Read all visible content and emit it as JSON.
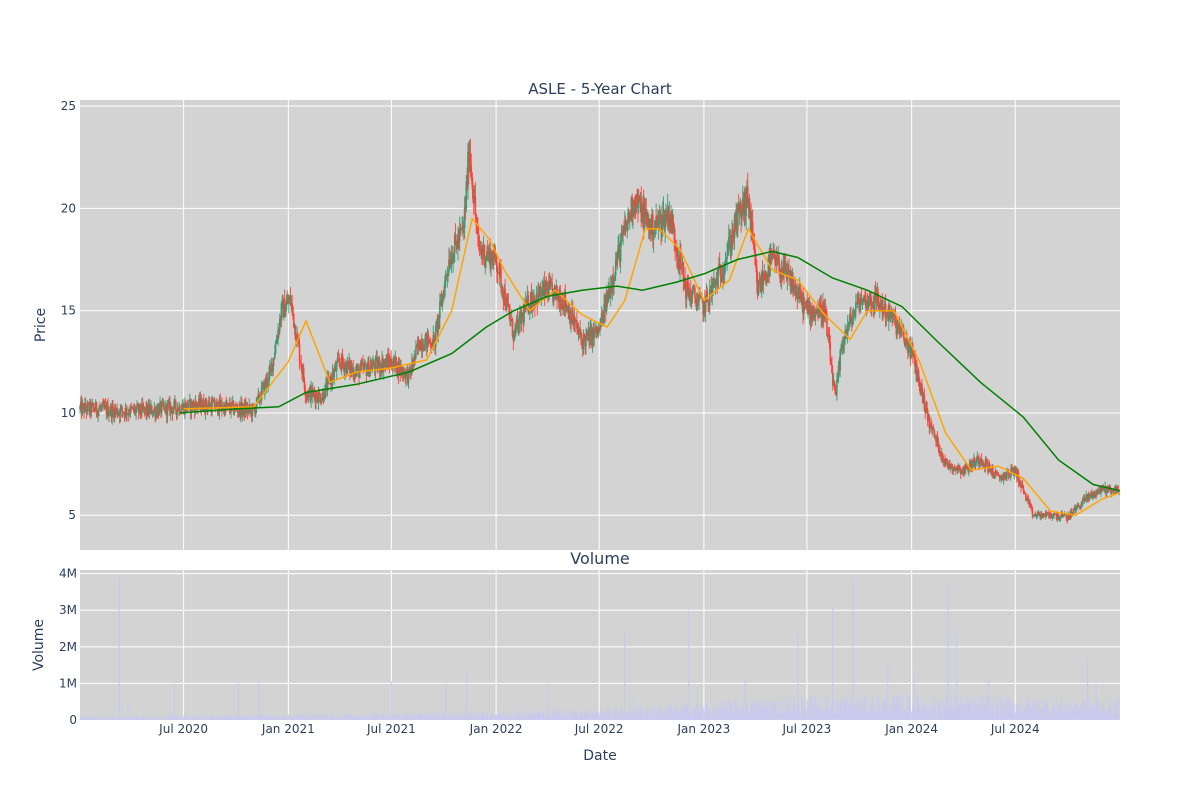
{
  "chart_data": [
    {
      "type": "candlestick",
      "title": "ASLE - 5-Year Chart",
      "xlabel": "",
      "ylabel": "Price",
      "ylim": [
        3.3,
        25.3
      ],
      "yticks": [
        5,
        10,
        15,
        20,
        25
      ],
      "grid": true,
      "legend": "none",
      "colors": {
        "increasing": "#3d9970",
        "decreasing": "#ff4136",
        "ma_short": "#ffa500",
        "ma_long": "#008000",
        "plot_bg": "#d3d3d3",
        "grid": "#ffffff"
      },
      "series": [
        {
          "kind": "ohlc-close-trace",
          "points": [
            [
              "2020-01-01",
              10.2
            ],
            [
              "2020-02-01",
              10.2
            ],
            [
              "2020-03-01",
              10.1
            ],
            [
              "2020-04-01",
              10.1
            ],
            [
              "2020-05-01",
              10.1
            ],
            [
              "2020-06-01",
              10.2
            ],
            [
              "2020-07-01",
              10.3
            ],
            [
              "2020-08-01",
              10.4
            ],
            [
              "2020-09-01",
              10.3
            ],
            [
              "2020-10-01",
              10.2
            ],
            [
              "2020-11-01",
              10.1
            ],
            [
              "2020-12-01",
              12.0
            ],
            [
              "2020-12-20",
              15.0
            ],
            [
              "2021-01-05",
              15.5
            ],
            [
              "2021-02-01",
              11.0
            ],
            [
              "2021-03-01",
              10.8
            ],
            [
              "2021-04-01",
              12.5
            ],
            [
              "2021-05-01",
              12.0
            ],
            [
              "2021-06-01",
              12.3
            ],
            [
              "2021-07-01",
              12.5
            ],
            [
              "2021-08-01",
              11.8
            ],
            [
              "2021-08-20",
              13.5
            ],
            [
              "2021-09-15",
              13.5
            ],
            [
              "2021-10-10",
              17.5
            ],
            [
              "2021-11-05",
              19.0
            ],
            [
              "2021-11-15",
              23.0
            ],
            [
              "2021-12-01",
              18.0
            ],
            [
              "2022-01-01",
              17.5
            ],
            [
              "2022-02-01",
              13.8
            ],
            [
              "2022-03-01",
              15.5
            ],
            [
              "2022-04-01",
              16.0
            ],
            [
              "2022-05-01",
              15.5
            ],
            [
              "2022-06-01",
              13.5
            ],
            [
              "2022-07-01",
              14.0
            ],
            [
              "2022-08-01",
              17.5
            ],
            [
              "2022-09-01",
              20.5
            ],
            [
              "2022-10-01",
              19.0
            ],
            [
              "2022-11-01",
              19.8
            ],
            [
              "2022-12-01",
              16.0
            ],
            [
              "2023-01-01",
              15.2
            ],
            [
              "2023-02-01",
              17.0
            ],
            [
              "2023-03-01",
              19.5
            ],
            [
              "2023-03-20",
              20.5
            ],
            [
              "2023-04-05",
              16.0
            ],
            [
              "2023-05-01",
              17.5
            ],
            [
              "2023-06-01",
              16.5
            ],
            [
              "2023-07-01",
              15.0
            ],
            [
              "2023-08-01",
              15.0
            ],
            [
              "2023-08-20",
              10.6
            ],
            [
              "2023-09-01",
              13.5
            ],
            [
              "2023-10-01",
              15.5
            ],
            [
              "2023-11-01",
              15.5
            ],
            [
              "2023-12-01",
              14.5
            ],
            [
              "2024-01-01",
              13.0
            ],
            [
              "2024-02-01",
              9.5
            ],
            [
              "2024-03-01",
              7.5
            ],
            [
              "2024-04-01",
              7.2
            ],
            [
              "2024-05-01",
              7.8
            ],
            [
              "2024-06-01",
              6.8
            ],
            [
              "2024-07-01",
              7.2
            ],
            [
              "2024-08-01",
              5.0
            ],
            [
              "2024-09-01",
              5.0
            ],
            [
              "2024-10-01",
              4.9
            ],
            [
              "2024-11-01",
              5.8
            ],
            [
              "2024-12-01",
              6.3
            ],
            [
              "2025-01-01",
              6.2
            ]
          ]
        },
        {
          "kind": "moving-average-short",
          "points": [
            [
              "2020-07-01",
              10.2
            ],
            [
              "2020-11-01",
              10.3
            ],
            [
              "2021-01-01",
              12.5
            ],
            [
              "2021-02-01",
              14.5
            ],
            [
              "2021-03-15",
              11.5
            ],
            [
              "2021-05-01",
              12.0
            ],
            [
              "2021-07-01",
              12.2
            ],
            [
              "2021-09-01",
              12.6
            ],
            [
              "2021-10-15",
              15.0
            ],
            [
              "2021-11-20",
              19.5
            ],
            [
              "2021-12-20",
              18.5
            ],
            [
              "2022-01-15",
              17.0
            ],
            [
              "2022-03-01",
              15.0
            ],
            [
              "2022-04-15",
              16.0
            ],
            [
              "2022-06-01",
              14.8
            ],
            [
              "2022-07-15",
              14.2
            ],
            [
              "2022-08-15",
              15.5
            ],
            [
              "2022-09-20",
              19.0
            ],
            [
              "2022-10-15",
              19.0
            ],
            [
              "2022-11-20",
              18.0
            ],
            [
              "2023-01-01",
              15.5
            ],
            [
              "2023-02-15",
              16.5
            ],
            [
              "2023-03-20",
              19.0
            ],
            [
              "2023-05-01",
              17.0
            ],
            [
              "2023-06-15",
              16.5
            ],
            [
              "2023-08-01",
              14.8
            ],
            [
              "2023-09-15",
              13.6
            ],
            [
              "2023-10-15",
              15.0
            ],
            [
              "2023-12-01",
              15.0
            ],
            [
              "2024-01-15",
              12.5
            ],
            [
              "2024-03-01",
              9.0
            ],
            [
              "2024-04-15",
              7.2
            ],
            [
              "2024-06-01",
              7.4
            ],
            [
              "2024-07-15",
              6.8
            ],
            [
              "2024-09-01",
              5.2
            ],
            [
              "2024-10-15",
              5.0
            ],
            [
              "2024-12-01",
              5.8
            ],
            [
              "2025-01-01",
              6.1
            ]
          ]
        },
        {
          "kind": "moving-average-long",
          "points": [
            [
              "2020-06-25",
              10.0
            ],
            [
              "2020-10-01",
              10.2
            ],
            [
              "2020-12-15",
              10.3
            ],
            [
              "2021-02-01",
              11.0
            ],
            [
              "2021-05-01",
              11.4
            ],
            [
              "2021-08-01",
              12.0
            ],
            [
              "2021-10-15",
              12.9
            ],
            [
              "2021-12-15",
              14.2
            ],
            [
              "2022-02-01",
              15.0
            ],
            [
              "2022-04-01",
              15.7
            ],
            [
              "2022-06-01",
              16.0
            ],
            [
              "2022-08-01",
              16.2
            ],
            [
              "2022-09-15",
              16.0
            ],
            [
              "2022-11-15",
              16.4
            ],
            [
              "2023-01-01",
              16.8
            ],
            [
              "2023-03-01",
              17.5
            ],
            [
              "2023-05-01",
              17.9
            ],
            [
              "2023-06-15",
              17.6
            ],
            [
              "2023-08-15",
              16.6
            ],
            [
              "2023-10-15",
              16.0
            ],
            [
              "2023-12-15",
              15.2
            ],
            [
              "2024-02-15",
              13.5
            ],
            [
              "2024-05-01",
              11.5
            ],
            [
              "2024-07-15",
              9.8
            ],
            [
              "2024-09-15",
              7.7
            ],
            [
              "2024-11-15",
              6.5
            ],
            [
              "2025-01-01",
              6.2
            ]
          ]
        }
      ]
    },
    {
      "type": "bar",
      "title": "Volume",
      "xlabel": "Date",
      "ylabel": "Volume",
      "ylim": [
        0,
        4100000
      ],
      "yticks": [
        0,
        1000000,
        2000000,
        3000000,
        4000000
      ],
      "ytick_labels": [
        "0",
        "1M",
        "2M",
        "3M",
        "4M"
      ],
      "xticks": [
        "2020-07-01",
        "2021-01-01",
        "2021-07-01",
        "2022-01-01",
        "2022-07-01",
        "2023-01-01",
        "2023-07-01",
        "2024-01-01",
        "2024-07-01"
      ],
      "xtick_labels": [
        "Jul 2020",
        "Jan 2021",
        "Jul 2021",
        "Jan 2022",
        "Jul 2022",
        "Jan 2023",
        "Jul 2023",
        "Jan 2024",
        "Jul 2024"
      ],
      "xlim": [
        "2020-01-01",
        "2025-01-01"
      ],
      "bar_color": "#c8c8f0",
      "spikes": [
        [
          "2020-03-10",
          3900000
        ],
        [
          "2020-03-25",
          450000
        ],
        [
          "2020-06-15",
          1000000
        ],
        [
          "2020-10-05",
          1050000
        ],
        [
          "2020-11-10",
          1050000
        ],
        [
          "2021-07-01",
          1050000
        ],
        [
          "2021-10-05",
          1000000
        ],
        [
          "2021-11-10",
          1300000
        ],
        [
          "2022-04-01",
          1000000
        ],
        [
          "2022-08-15",
          2450000
        ],
        [
          "2022-09-01",
          600000
        ],
        [
          "2022-12-05",
          3000000
        ],
        [
          "2022-12-20",
          900000
        ],
        [
          "2023-03-15",
          1200000
        ],
        [
          "2023-06-15",
          2500000
        ],
        [
          "2023-08-15",
          3100000
        ],
        [
          "2023-09-20",
          3900000
        ],
        [
          "2023-11-20",
          1500000
        ],
        [
          "2024-01-05",
          1400000
        ],
        [
          "2024-03-05",
          3700000
        ],
        [
          "2024-03-20",
          2500000
        ],
        [
          "2024-05-15",
          1100000
        ],
        [
          "2024-11-05",
          1700000
        ],
        [
          "2024-11-20",
          1000000
        ]
      ],
      "baseline_levels": [
        [
          "2020-01-01",
          80000
        ],
        [
          "2021-10-01",
          150000
        ],
        [
          "2022-08-01",
          250000
        ],
        [
          "2023-06-01",
          450000
        ],
        [
          "2024-01-01",
          500000
        ],
        [
          "2025-01-01",
          400000
        ]
      ]
    }
  ]
}
